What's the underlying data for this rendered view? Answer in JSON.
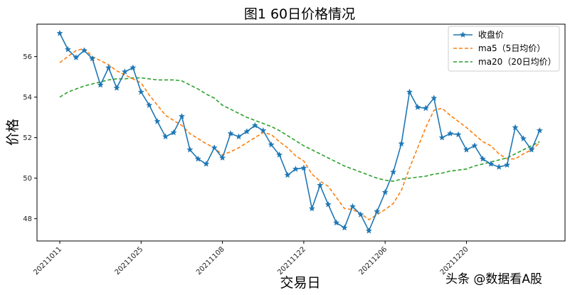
{
  "chart_data": {
    "type": "line",
    "title": "图1   60日价格情况",
    "xlabel": "交易日",
    "ylabel": "价格",
    "ylim": [
      46.9,
      57.6
    ],
    "yticks": [
      48,
      50,
      52,
      54,
      56
    ],
    "ytick_labels": [
      "48",
      "50",
      "52",
      "54",
      "56"
    ],
    "x_ticks": [
      {
        "index": 0,
        "label": "20211011"
      },
      {
        "index": 10,
        "label": "20211025"
      },
      {
        "index": 20,
        "label": "20211108"
      },
      {
        "index": 30,
        "label": "20211122"
      },
      {
        "index": 40,
        "label": "20211206"
      },
      {
        "index": 50,
        "label": "20211220"
      }
    ],
    "grid": false,
    "legend_position": "top-right",
    "series": [
      {
        "name": "收盘价",
        "color": "#1f77b4",
        "style": "solid-star",
        "values": [
          57.15,
          56.35,
          55.95,
          56.3,
          55.9,
          54.6,
          55.45,
          54.45,
          55.25,
          55.45,
          54.25,
          53.6,
          52.8,
          52.05,
          52.25,
          53.05,
          51.4,
          50.95,
          50.7,
          51.5,
          51.0,
          52.2,
          52.05,
          52.3,
          52.6,
          52.35,
          51.65,
          51.15,
          50.15,
          50.45,
          50.5,
          48.5,
          49.65,
          48.7,
          47.8,
          47.55,
          48.6,
          48.2,
          47.4,
          48.35,
          49.3,
          50.3,
          51.7,
          54.25,
          53.5,
          53.45,
          53.95,
          52.0,
          52.2,
          52.15,
          51.4,
          51.6,
          50.95,
          50.7,
          50.55,
          50.65,
          52.5,
          51.95,
          51.4,
          52.35
        ]
      },
      {
        "name": "ma5（5日均价）",
        "color": "#ff7f0e",
        "style": "dashed",
        "values": [
          55.7,
          56.0,
          56.3,
          56.4,
          56.0,
          55.8,
          55.6,
          55.3,
          55.1,
          54.9,
          54.7,
          54.1,
          53.6,
          53.1,
          52.85,
          52.6,
          52.2,
          51.95,
          51.7,
          51.5,
          51.15,
          51.3,
          51.5,
          51.75,
          52.0,
          52.25,
          52.15,
          51.8,
          51.5,
          51.1,
          50.85,
          50.2,
          49.85,
          49.6,
          49.05,
          48.5,
          48.45,
          48.25,
          47.95,
          48.2,
          48.45,
          48.75,
          49.4,
          50.5,
          51.5,
          52.5,
          53.35,
          53.45,
          53.1,
          52.8,
          52.5,
          52.15,
          51.8,
          51.6,
          51.2,
          50.95,
          50.95,
          51.2,
          51.4,
          51.75
        ]
      },
      {
        "name": "ma20（20日均价）",
        "color": "#2ca02c",
        "style": "dashed",
        "values": [
          54.0,
          54.25,
          54.4,
          54.55,
          54.65,
          54.75,
          54.85,
          54.9,
          54.9,
          54.95,
          54.95,
          54.9,
          54.85,
          54.85,
          54.85,
          54.8,
          54.6,
          54.4,
          54.15,
          53.95,
          53.6,
          53.4,
          53.2,
          53.0,
          52.85,
          52.7,
          52.55,
          52.35,
          52.1,
          51.85,
          51.6,
          51.4,
          51.2,
          51.0,
          50.8,
          50.6,
          50.45,
          50.3,
          50.15,
          50.0,
          49.9,
          49.85,
          49.95,
          50.0,
          50.05,
          50.1,
          50.2,
          50.25,
          50.35,
          50.4,
          50.45,
          50.6,
          50.7,
          50.8,
          50.9,
          51.0,
          51.2,
          51.4,
          51.6,
          51.8
        ]
      }
    ]
  },
  "watermark": "头条 @数据看A股"
}
